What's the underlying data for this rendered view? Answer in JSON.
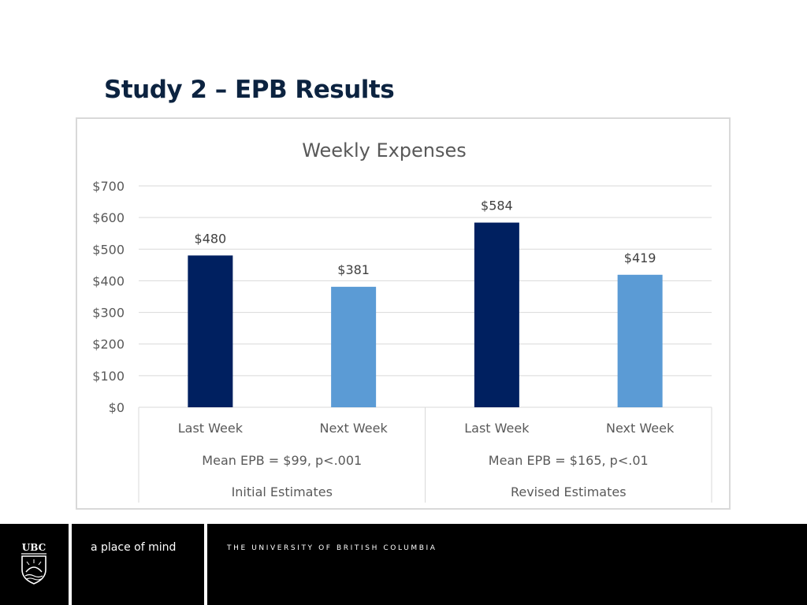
{
  "slide": {
    "title": "Study 2 – EPB Results"
  },
  "chart_data": {
    "type": "bar",
    "title": "Weekly Expenses",
    "categories": [
      "Last Week",
      "Next Week",
      "Last Week",
      "Next Week"
    ],
    "values": [
      480,
      381,
      584,
      419
    ],
    "value_labels": [
      "$480",
      "$381",
      "$584",
      "$419"
    ],
    "bar_colors": [
      "#002060",
      "#5b9bd5",
      "#002060",
      "#5b9bd5"
    ],
    "ylim": [
      0,
      700
    ],
    "yticks": [
      0,
      100,
      200,
      300,
      400,
      500,
      600,
      700
    ],
    "ytick_labels": [
      "$0",
      "$100",
      "$200",
      "$300",
      "$400",
      "$500",
      "$600",
      "$700"
    ],
    "grid": true,
    "groups": [
      {
        "stat": "Mean EPB = $99, p<.001",
        "label": "Initial Estimates"
      },
      {
        "stat": "Mean EPB = $165, p<.01",
        "label": "Revised Estimates"
      }
    ],
    "xlabel": "",
    "ylabel": ""
  },
  "footer": {
    "crest_text": "UBC",
    "tagline": "a place of mind",
    "university": "THE UNIVERSITY OF BRITISH COLUMBIA"
  }
}
